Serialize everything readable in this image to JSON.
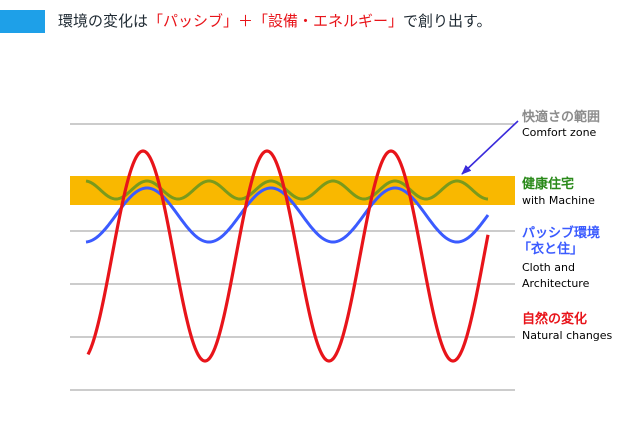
{
  "title": {
    "part1": "環境の変化は",
    "part2": "「パッシブ」＋「設備・エネルギー」",
    "part3": "で創り出す。"
  },
  "legend": {
    "comfort": {
      "jp": "快適さの範囲",
      "en": "Comfort zone",
      "color": "#8c8c8c"
    },
    "machine": {
      "jp": "健康住宅",
      "en": "with Machine",
      "color": "#2a8a1a"
    },
    "passive": {
      "jp1": "パッシブ環境",
      "jp2": "「衣と住」",
      "en1": "Cloth and",
      "en2": "Architecture",
      "color": "#3b5bff"
    },
    "nature": {
      "jp": "自然の変化",
      "en": "Natural changes",
      "color": "#e8141a"
    }
  },
  "colors": {
    "zone": "#f9b800",
    "gridline": "#999999",
    "arrow": "#3a2bdb",
    "olive": "#7a9a1c"
  }
}
